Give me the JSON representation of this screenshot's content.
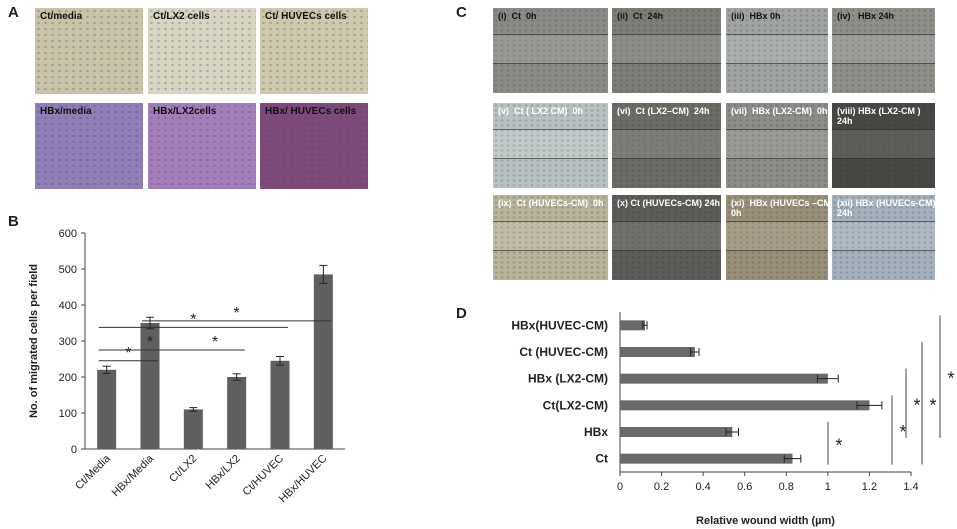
{
  "panels": {
    "a": "A",
    "b": "B",
    "c": "C",
    "d": "D"
  },
  "panel_a_images": [
    {
      "label": "Ct/media",
      "color": "#c9c4a8"
    },
    {
      "label": "Ct/LX2 cells",
      "color": "#d8d6c0"
    },
    {
      "label": "Ct/ HUVECs cells",
      "color": "#cfc9ab"
    },
    {
      "label": "HBx/media",
      "color": "#8f7fb6"
    },
    {
      "label": "HBx/LX2cells",
      "color": "#a37fba"
    },
    {
      "label": "HBx/ HUVECs cells",
      "color": "#7d4a7a"
    }
  ],
  "panel_c_images": [
    {
      "label": "(i)  Ct  0h",
      "color": "#8a8a86"
    },
    {
      "label": "(ii)  Ct  24h",
      "color": "#7e7e78"
    },
    {
      "label": "(iii)  HBx 0h",
      "color": "#a1a4a4"
    },
    {
      "label": "(iv)   HBx 24h",
      "color": "#8f8f8a"
    },
    {
      "label": "(v)  Ct ( LX2 CM)  0h",
      "color": "#b9c2c2"
    },
    {
      "label": "(vi)  Ct (LX2–CM)  24h",
      "color": "#6c6c66"
    },
    {
      "label": "(vii)  HBx (LX2-CM)  0h",
      "color": "#8c8c88"
    },
    {
      "label": "(viii) HBx (LX2-CM )\n24h",
      "color": "#474744"
    },
    {
      "label": "(ix)  Ct (HUVECs-CM)  0h",
      "color": "#b8b39a"
    },
    {
      "label": "(x) Ct (HUVECs-CM) 24h",
      "color": "#5c5c58"
    },
    {
      "label": "(xi)  HBx (HUVECs –CM)\n0h",
      "color": "#9a8f78"
    },
    {
      "label": "(xii) HBx (HUVECs-CM)\n24h",
      "color": "#a4b0bc"
    }
  ],
  "chart_data": [
    {
      "type": "bar",
      "panel": "B",
      "categories": [
        "Ct/Media",
        "HBx/Media",
        "Ct/LX2",
        "HBx/LX2",
        "Ct/HUVEC",
        "HBx/HUVEC"
      ],
      "values": [
        220,
        350,
        110,
        200,
        245,
        485
      ],
      "errors": [
        10,
        16,
        5,
        9,
        12,
        25
      ],
      "ylabel": "No. of migrated cells per field",
      "xlabel": "",
      "ylim": [
        0,
        600
      ],
      "yticks": [
        0,
        100,
        200,
        300,
        400,
        500,
        600
      ],
      "bar_color": "#5f5f5f",
      "significance": [
        {
          "from": 0,
          "to": 1,
          "mark": "*"
        },
        {
          "from": 0,
          "to": 2,
          "mark": "*"
        },
        {
          "from": 2,
          "to": 3,
          "mark": "*"
        },
        {
          "from": 0,
          "to": 4,
          "mark": "*"
        },
        {
          "from": 1,
          "to": 5,
          "mark": "*"
        }
      ]
    },
    {
      "type": "bar",
      "orientation": "horizontal",
      "panel": "D",
      "categories": [
        "HBx(HUVEC-CM)",
        "Ct (HUVEC-CM)",
        "HBx (LX2-CM)",
        "Ct(LX2-CM)",
        "HBx",
        "Ct"
      ],
      "values": [
        0.12,
        0.36,
        1.0,
        1.2,
        0.54,
        0.83
      ],
      "errors": [
        0.01,
        0.02,
        0.05,
        0.06,
        0.03,
        0.04
      ],
      "xlabel": "Relative wound width (µm)",
      "ylabel": "",
      "xlim": [
        0,
        1.4
      ],
      "xticks": [
        0,
        0.2,
        0.4,
        0.6,
        0.8,
        1,
        1.2,
        1.4
      ],
      "xtick_labels": [
        "0",
        "0.2",
        "0.4",
        "0.6",
        "0.8",
        "1",
        "1.2",
        "1.4"
      ],
      "bar_color": "#6a6a6a",
      "significance": [
        {
          "from": 4,
          "to": 5,
          "mark": "*"
        },
        {
          "from": 3,
          "to": 5,
          "mark": "*"
        },
        {
          "from": 2,
          "to": 4,
          "mark": "*"
        },
        {
          "from": 1,
          "to": 5,
          "mark": "*"
        },
        {
          "from": 0,
          "to": 4,
          "mark": "*"
        }
      ]
    }
  ]
}
